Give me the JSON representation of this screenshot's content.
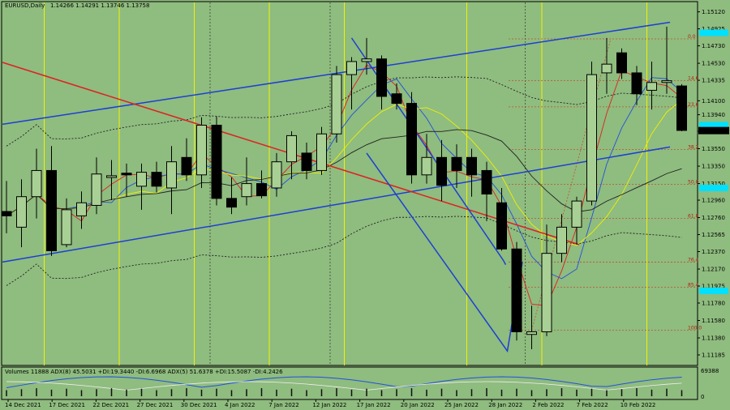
{
  "header": {
    "symbol_label": "EURUSD,Daily",
    "ohlc_label": "1.14266 1.14291 1.13746 1.13758"
  },
  "volume_panel": {
    "label": "Volumes 11888  ADX(8) 45.5031 +DI:19.3440 -DI:6.6968  ADX(5) 51.6378 +DI:15.5087 -DI:4.2426",
    "scale_top": "69388",
    "scale_bottom": "0"
  },
  "price_tag": {
    "value": "1.13758",
    "color": "#000000"
  },
  "colors": {
    "background": "#8fbc7f",
    "channel_lines": "#1c3fd4",
    "trend_line": "#e02020",
    "fibo_lines": "#c05030",
    "cyan_tags": "#00e0ff",
    "yellow_vlines": "#f2f200",
    "bull_candle": "#a8d094",
    "bear_candle": "#000000"
  },
  "chart_data": {
    "type": "candlestick",
    "symbol": "EURUSD",
    "timeframe": "Daily",
    "ylim": [
      1.1112,
      1.152
    ],
    "y_ticks": [
      "1.15120",
      "1.14925",
      "1.14730",
      "1.14530",
      "1.14335",
      "1.14100",
      "1.13940",
      "1.13750",
      "1.13550",
      "1.13350",
      "1.13150",
      "1.12960",
      "1.12760",
      "1.12565",
      "1.12370",
      "1.12170",
      "1.11975",
      "1.11780",
      "1.11580",
      "1.11380",
      "1.11185"
    ],
    "x_ticks": [
      "14 Dec 2021",
      "17 Dec 2021",
      "22 Dec 2021",
      "27 Dec 2021",
      "30 Dec 2021",
      "4 Jan 2022",
      "7 Jan 2022",
      "12 Jan 2022",
      "17 Jan 2022",
      "20 Jan 2022",
      "25 Jan 2022",
      "28 Jan 2022",
      "2 Feb 2022",
      "7 Feb 2022",
      "10 Feb 2022"
    ],
    "fibo_levels": [
      {
        "label": "0.0",
        "price": 1.1481
      },
      {
        "label": "14.6",
        "price": 1.1433
      },
      {
        "label": "23.6",
        "price": 1.1403
      },
      {
        "label": "38.2",
        "price": 1.1354
      },
      {
        "label": "50.0",
        "price": 1.1314
      },
      {
        "label": "61.8",
        "price": 1.1275
      },
      {
        "label": "76.4",
        "price": 1.1225
      },
      {
        "label": "85.4",
        "price": 1.1196
      },
      {
        "label": "100.0",
        "price": 1.1147
      }
    ],
    "candles": [
      {
        "o": 1.1283,
        "h": 1.1318,
        "l": 1.1258,
        "c": 1.1278
      },
      {
        "o": 1.1265,
        "h": 1.132,
        "l": 1.1242,
        "c": 1.13
      },
      {
        "o": 1.13,
        "h": 1.1355,
        "l": 1.1275,
        "c": 1.133
      },
      {
        "o": 1.133,
        "h": 1.1358,
        "l": 1.1232,
        "c": 1.1238
      },
      {
        "o": 1.1245,
        "h": 1.1298,
        "l": 1.1242,
        "c": 1.1285
      },
      {
        "o": 1.1278,
        "h": 1.1306,
        "l": 1.1263,
        "c": 1.1293
      },
      {
        "o": 1.129,
        "h": 1.1345,
        "l": 1.128,
        "c": 1.1326
      },
      {
        "o": 1.1322,
        "h": 1.1342,
        "l": 1.1296,
        "c": 1.1324
      },
      {
        "o": 1.1327,
        "h": 1.1338,
        "l": 1.13,
        "c": 1.1325
      },
      {
        "o": 1.1312,
        "h": 1.1338,
        "l": 1.1285,
        "c": 1.1328
      },
      {
        "o": 1.1328,
        "h": 1.134,
        "l": 1.1305,
        "c": 1.1312
      },
      {
        "o": 1.131,
        "h": 1.1358,
        "l": 1.128,
        "c": 1.134
      },
      {
        "o": 1.1345,
        "h": 1.1367,
        "l": 1.1318,
        "c": 1.1325
      },
      {
        "o": 1.1325,
        "h": 1.1391,
        "l": 1.131,
        "c": 1.1382
      },
      {
        "o": 1.1382,
        "h": 1.1392,
        "l": 1.129,
        "c": 1.1298
      },
      {
        "o": 1.1298,
        "h": 1.1322,
        "l": 1.128,
        "c": 1.1288
      },
      {
        "o": 1.13,
        "h": 1.1345,
        "l": 1.129,
        "c": 1.1315
      },
      {
        "o": 1.1315,
        "h": 1.133,
        "l": 1.1298,
        "c": 1.1301
      },
      {
        "o": 1.131,
        "h": 1.135,
        "l": 1.13,
        "c": 1.134
      },
      {
        "o": 1.134,
        "h": 1.1375,
        "l": 1.132,
        "c": 1.137
      },
      {
        "o": 1.135,
        "h": 1.1362,
        "l": 1.132,
        "c": 1.133
      },
      {
        "o": 1.133,
        "h": 1.138,
        "l": 1.1325,
        "c": 1.1372
      },
      {
        "o": 1.1372,
        "h": 1.145,
        "l": 1.1362,
        "c": 1.144
      },
      {
        "o": 1.144,
        "h": 1.146,
        "l": 1.14,
        "c": 1.1455
      },
      {
        "o": 1.1455,
        "h": 1.1482,
        "l": 1.144,
        "c": 1.1458
      },
      {
        "o": 1.1458,
        "h": 1.1462,
        "l": 1.14,
        "c": 1.1415
      },
      {
        "o": 1.1418,
        "h": 1.143,
        "l": 1.14,
        "c": 1.1407
      },
      {
        "o": 1.1407,
        "h": 1.142,
        "l": 1.1315,
        "c": 1.1325
      },
      {
        "o": 1.1325,
        "h": 1.1372,
        "l": 1.1315,
        "c": 1.1345
      },
      {
        "o": 1.1345,
        "h": 1.1365,
        "l": 1.1295,
        "c": 1.1313
      },
      {
        "o": 1.1345,
        "h": 1.136,
        "l": 1.131,
        "c": 1.133
      },
      {
        "o": 1.1345,
        "h": 1.1355,
        "l": 1.13,
        "c": 1.1325
      },
      {
        "o": 1.133,
        "h": 1.134,
        "l": 1.1272,
        "c": 1.1303
      },
      {
        "o": 1.1293,
        "h": 1.131,
        "l": 1.1238,
        "c": 1.124
      },
      {
        "o": 1.124,
        "h": 1.1248,
        "l": 1.1135,
        "c": 1.1145
      },
      {
        "o": 1.1142,
        "h": 1.1175,
        "l": 1.1125,
        "c": 1.1145
      },
      {
        "o": 1.1145,
        "h": 1.1268,
        "l": 1.114,
        "c": 1.1235
      },
      {
        "o": 1.1235,
        "h": 1.128,
        "l": 1.1225,
        "c": 1.1265
      },
      {
        "o": 1.1265,
        "h": 1.13,
        "l": 1.1245,
        "c": 1.1295
      },
      {
        "o": 1.1295,
        "h": 1.1455,
        "l": 1.129,
        "c": 1.144
      },
      {
        "o": 1.1442,
        "h": 1.1482,
        "l": 1.1418,
        "c": 1.1452
      },
      {
        "o": 1.1465,
        "h": 1.147,
        "l": 1.1435,
        "c": 1.1442
      },
      {
        "o": 1.1442,
        "h": 1.145,
        "l": 1.1405,
        "c": 1.1418
      },
      {
        "o": 1.1422,
        "h": 1.1455,
        "l": 1.14,
        "c": 1.1431
      },
      {
        "o": 1.1431,
        "h": 1.1495,
        "l": 1.1418,
        "c": 1.1433
      },
      {
        "o": 1.1427,
        "h": 1.1429,
        "l": 1.1375,
        "c": 1.1376
      }
    ]
  }
}
